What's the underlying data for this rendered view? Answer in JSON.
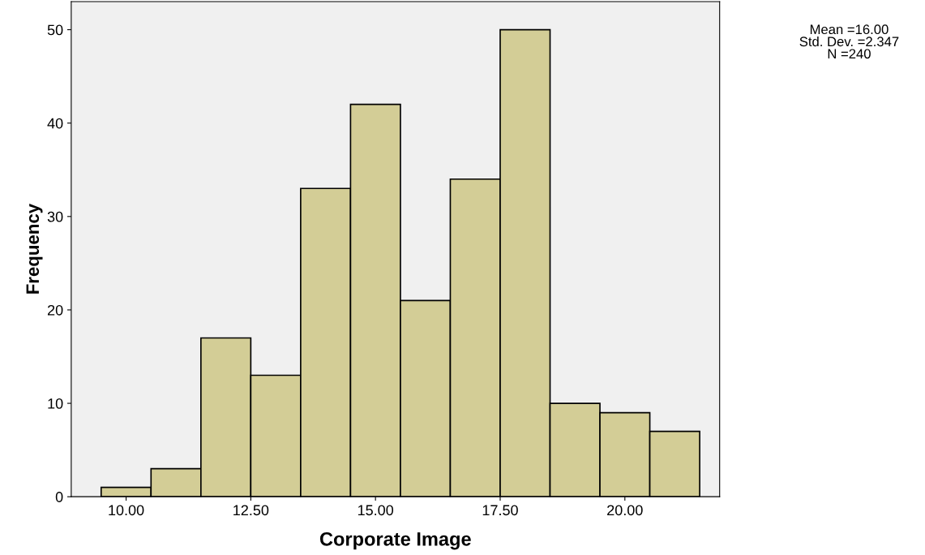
{
  "chart_data": {
    "type": "histogram",
    "xlabel": "Corporate Image",
    "ylabel": "Frequency",
    "bins": [
      9.5,
      10.5,
      11.5,
      12.5,
      13.5,
      14.5,
      15.5,
      16.5,
      17.5,
      18.5,
      19.5,
      20.5,
      21.5
    ],
    "values": [
      1,
      3,
      17,
      13,
      33,
      42,
      21,
      34,
      50,
      10,
      9,
      7
    ],
    "color": "#d3cd96",
    "xlim": [
      8.9,
      21.9
    ],
    "xticks": [
      {
        "value": 10,
        "label": "10.00"
      },
      {
        "value": 12.5,
        "label": "12.50"
      },
      {
        "value": 15,
        "label": "15.00"
      },
      {
        "value": 17.5,
        "label": "17.50"
      },
      {
        "value": 20,
        "label": "20.00"
      }
    ],
    "ylim": [
      0,
      53
    ],
    "yticks": [
      0,
      10,
      20,
      30,
      40,
      50
    ],
    "grid": false,
    "legend": false,
    "annotations": [
      "Mean =16.00",
      "Std. Dev. =2.347",
      "N =240"
    ]
  }
}
